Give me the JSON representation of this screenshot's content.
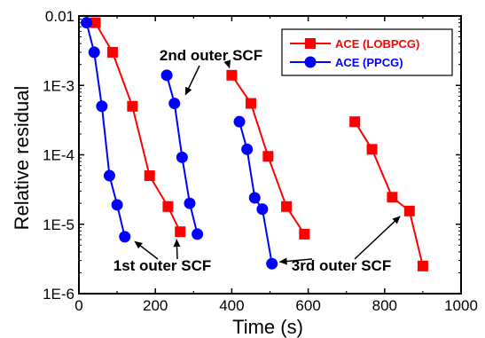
{
  "chart_data": {
    "type": "line",
    "xlabel": "Time (s)",
    "ylabel": "Relative residual",
    "xlim": [
      0,
      1000
    ],
    "ylim": [
      1e-06,
      0.01
    ],
    "yscale": "log",
    "x_ticks": [
      0,
      200,
      400,
      600,
      800,
      1000
    ],
    "x_tick_labels": [
      "0",
      "200",
      "400",
      "600",
      "800",
      "1000"
    ],
    "y_ticks": [
      1e-06,
      1e-05,
      0.0001,
      0.001,
      0.01
    ],
    "y_tick_labels": [
      "1E-6",
      "1E-5",
      "1E-4",
      "1E-3",
      "0.01"
    ],
    "legend_position": "top-right",
    "series": [
      {
        "name": "ACE (LOBPCG)",
        "color": "#ff0000",
        "marker": "square",
        "segments": [
          {
            "x": [
              43,
              88,
              140,
              185,
              233,
              265
            ],
            "y": [
              0.008,
              0.003,
              0.0005,
              5e-05,
              1.8e-05,
              7.8e-06
            ]
          },
          {
            "x": [
              400,
              450,
              495,
              543,
              590
            ],
            "y": [
              0.0014,
              0.00055,
              9.5e-05,
              1.8e-05,
              7.2e-06
            ]
          },
          {
            "x": [
              722,
              767,
              820,
              865,
              900
            ],
            "y": [
              0.0003,
              0.00012,
              2.45e-05,
              1.55e-05,
              2.5e-06
            ]
          }
        ]
      },
      {
        "name": "ACE (PPCG)",
        "color": "#0000ff",
        "marker": "circle",
        "segments": [
          {
            "x": [
              20,
              40,
              60,
              80,
              100,
              120
            ],
            "y": [
              0.008,
              0.003,
              0.0005,
              5e-05,
              1.9e-05,
              6.6e-06
            ]
          },
          {
            "x": [
              230,
              250,
              270,
              290,
              310
            ],
            "y": [
              0.0014,
              0.00055,
              9.2e-05,
              2e-05,
              7.2e-06
            ]
          },
          {
            "x": [
              420,
              440,
              460,
              480,
              505
            ],
            "y": [
              0.0003,
              0.00012,
              2.4e-05,
              1.65e-05,
              2.7e-06
            ]
          }
        ]
      }
    ],
    "annotations": [
      {
        "text": "2nd outer SCF",
        "targets": [
          {
            "x": 270,
            "y": 0.00058
          },
          {
            "x": 400,
            "y": 0.0014
          }
        ]
      },
      {
        "text": "1st outer SCF",
        "targets": [
          {
            "x": 130,
            "y": 6.6e-06
          },
          {
            "x": 255,
            "y": 7.8e-06
          }
        ]
      },
      {
        "text": "3rd outer SCF",
        "targets": [
          {
            "x": 505,
            "y": 2.8e-06
          },
          {
            "x": 855,
            "y": 1.55e-05
          }
        ]
      }
    ]
  }
}
